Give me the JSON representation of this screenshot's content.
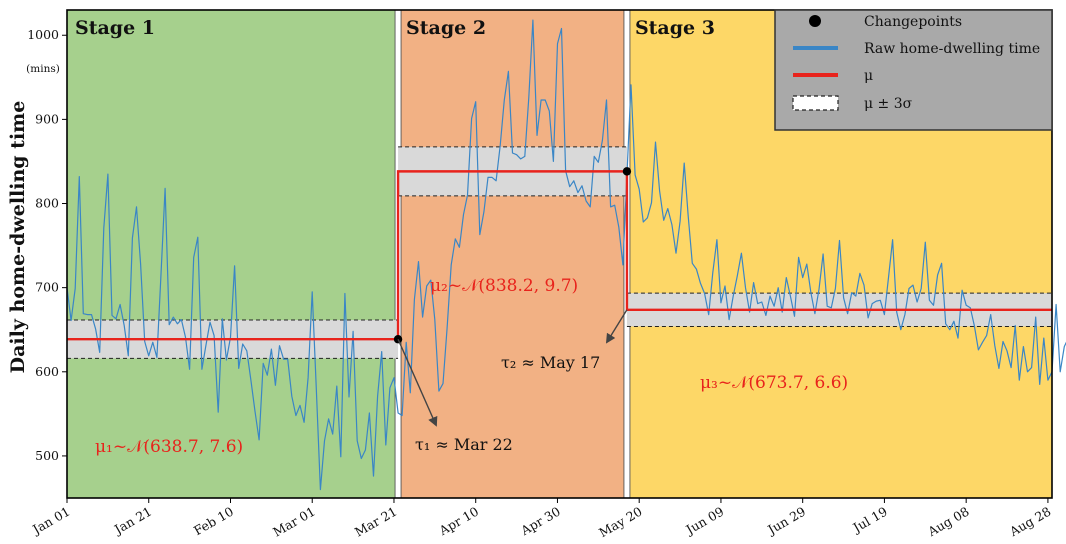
{
  "chart_data": {
    "type": "line",
    "title": "",
    "ylabel": "Daily home-dwelling time",
    "yunit": "(mins)",
    "ylim": [
      450,
      1030
    ],
    "yticks": [
      500,
      600,
      700,
      800,
      900,
      1000
    ],
    "xlim": [
      "2020-01-01",
      "2020-08-29"
    ],
    "xticks": [
      {
        "date": "2020-01-01",
        "label": "Jan 01"
      },
      {
        "date": "2020-01-21",
        "label": "Jan 21"
      },
      {
        "date": "2020-02-10",
        "label": "Feb 10"
      },
      {
        "date": "2020-03-01",
        "label": "Mar 01"
      },
      {
        "date": "2020-03-21",
        "label": "Mar 21"
      },
      {
        "date": "2020-04-10",
        "label": "Apr 10"
      },
      {
        "date": "2020-04-30",
        "label": "Apr 30"
      },
      {
        "date": "2020-05-20",
        "label": "May 20"
      },
      {
        "date": "2020-06-09",
        "label": "Jun 09"
      },
      {
        "date": "2020-06-29",
        "label": "Jun 29"
      },
      {
        "date": "2020-07-19",
        "label": "Jul 19"
      },
      {
        "date": "2020-08-08",
        "label": "Aug 08"
      },
      {
        "date": "2020-08-28",
        "label": "Aug 28"
      }
    ],
    "stages": [
      {
        "name": "Stage 1",
        "start": "2020-01-01",
        "end": "2020-03-22",
        "color": "#a6d08d"
      },
      {
        "name": "Stage 2",
        "start": "2020-03-22",
        "end": "2020-05-17",
        "color": "#f2b184"
      },
      {
        "name": "Stage 3",
        "start": "2020-05-17",
        "end": "2020-08-29",
        "color": "#fdd767"
      }
    ],
    "series": [
      {
        "name": "Raw home-dwelling time",
        "color": "#3a86c6",
        "start_date": "2020-01-01",
        "values": [
          700,
          661,
          699,
          832,
          669,
          668,
          668,
          651,
          623,
          771,
          835,
          667,
          663,
          680,
          655,
          619,
          759,
          796,
          728,
          636,
          619,
          635,
          617,
          716,
          818,
          656,
          665,
          657,
          662,
          641,
          603,
          736,
          760,
          603,
          632,
          659,
          643,
          552,
          663,
          614,
          641,
          726,
          604,
          633,
          625,
          590,
          553,
          519,
          610,
          596,
          627,
          584,
          631,
          615,
          615,
          571,
          548,
          560,
          540,
          593,
          695,
          580,
          460,
          518,
          544,
          526,
          583,
          499,
          693,
          570,
          648,
          518,
          497,
          507,
          551,
          476,
          571,
          624,
          513,
          581,
          593,
          551,
          548,
          635,
          575,
          686,
          731,
          665,
          702,
          709,
          662,
          577,
          586,
          652,
          727,
          758,
          748,
          787,
          810,
          901,
          921,
          763,
          790,
          831,
          831,
          827,
          869,
          923,
          957,
          860,
          858,
          853,
          856,
          926,
          1018,
          881,
          923,
          923,
          910,
          850,
          990,
          1008,
          839,
          820,
          827,
          813,
          821,
          803,
          796,
          856,
          849,
          875,
          923,
          796,
          798,
          772,
          727,
          833,
          941,
          834,
          817,
          778,
          783,
          801,
          873,
          815,
          780,
          794,
          775,
          741,
          779,
          848,
          785,
          729,
          722,
          705,
          693,
          668,
          718,
          757,
          682,
          702,
          662,
          690,
          714,
          741,
          700,
          671,
          706,
          681,
          683,
          667,
          690,
          678,
          700,
          671,
          712,
          690,
          666,
          736,
          712,
          728,
          694,
          669,
          698,
          740,
          678,
          676,
          699,
          756,
          688,
          669,
          694,
          690,
          717,
          703,
          664,
          681,
          684,
          685,
          668,
          712,
          757,
          671,
          650,
          668,
          699,
          703,
          683,
          699,
          754,
          685,
          679,
          715,
          729,
          657,
          650,
          660,
          640,
          697,
          679,
          676,
          655,
          626,
          635,
          643,
          668,
          631,
          604,
          636,
          625,
          605,
          655,
          590,
          630,
          600,
          605,
          665,
          585,
          640,
          590,
          600,
          680,
          600,
          630,
          640,
          595,
          610,
          740,
          660,
          680,
          655,
          640,
          630,
          610,
          680,
          700
        ]
      },
      {
        "name": "μ",
        "color": "#e8231c",
        "segments": [
          {
            "start": "2020-01-01",
            "end": "2020-03-22",
            "mu": 638.7,
            "sigma": 7.6
          },
          {
            "start": "2020-03-22",
            "end": "2020-05-17",
            "mu": 838.2,
            "sigma": 9.7
          },
          {
            "start": "2020-05-17",
            "end": "2020-08-29",
            "mu": 673.7,
            "sigma": 6.6
          }
        ]
      },
      {
        "name": "μ ± 3σ",
        "style": "dashed",
        "band_color": "#d9d9d9"
      },
      {
        "name": "Changepoints",
        "color": "#000000",
        "points": [
          "2020-03-22",
          "2020-05-17"
        ]
      }
    ],
    "legend": {
      "position": "top-right",
      "background": "#a9a9a9",
      "entries": [
        "Changepoints",
        "Raw home-dwelling time",
        "μ",
        "μ ± 3σ"
      ]
    },
    "annotations": {
      "mu1": "μ₁~𝒩(638.7, 7.6)",
      "mu2": "μ₂~𝒩(838.2, 9.7)",
      "mu3": "μ₃~𝒩(673.7, 6.6)",
      "tau1": "τ₁ ≈ Mar 22",
      "tau2": "τ₂ ≈ May 17"
    },
    "grid": false
  }
}
